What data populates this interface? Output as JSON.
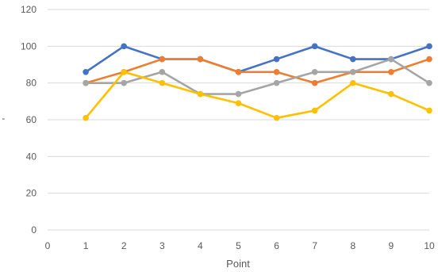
{
  "chart_data": {
    "type": "line",
    "title": "",
    "xlabel": "Point",
    "ylabel": "'",
    "xlim": [
      0,
      10
    ],
    "ylim": [
      0,
      120
    ],
    "x_ticks": [
      "0",
      "1",
      "2",
      "3",
      "4",
      "5",
      "6",
      "7",
      "8",
      "9",
      "10"
    ],
    "y_ticks": [
      "0",
      "20",
      "40",
      "60",
      "80",
      "100",
      "120"
    ],
    "grid": "horizontal",
    "legend": "none",
    "x": [
      1,
      2,
      3,
      4,
      5,
      6,
      7,
      8,
      9,
      10
    ],
    "series": [
      {
        "color": "#4472c4",
        "values": [
          86,
          100,
          93,
          93,
          86,
          93,
          100,
          93,
          93,
          100
        ]
      },
      {
        "color": "#ed7d31",
        "values": [
          80,
          86,
          93,
          93,
          86,
          86,
          80,
          86,
          86,
          93
        ]
      },
      {
        "color": "#a5a5a5",
        "values": [
          80,
          80,
          86,
          74,
          74,
          80,
          86,
          86,
          93,
          80
        ]
      },
      {
        "color": "#ffc000",
        "values": [
          61,
          86,
          80,
          74,
          69,
          61,
          65,
          80,
          74,
          65
        ]
      }
    ]
  }
}
